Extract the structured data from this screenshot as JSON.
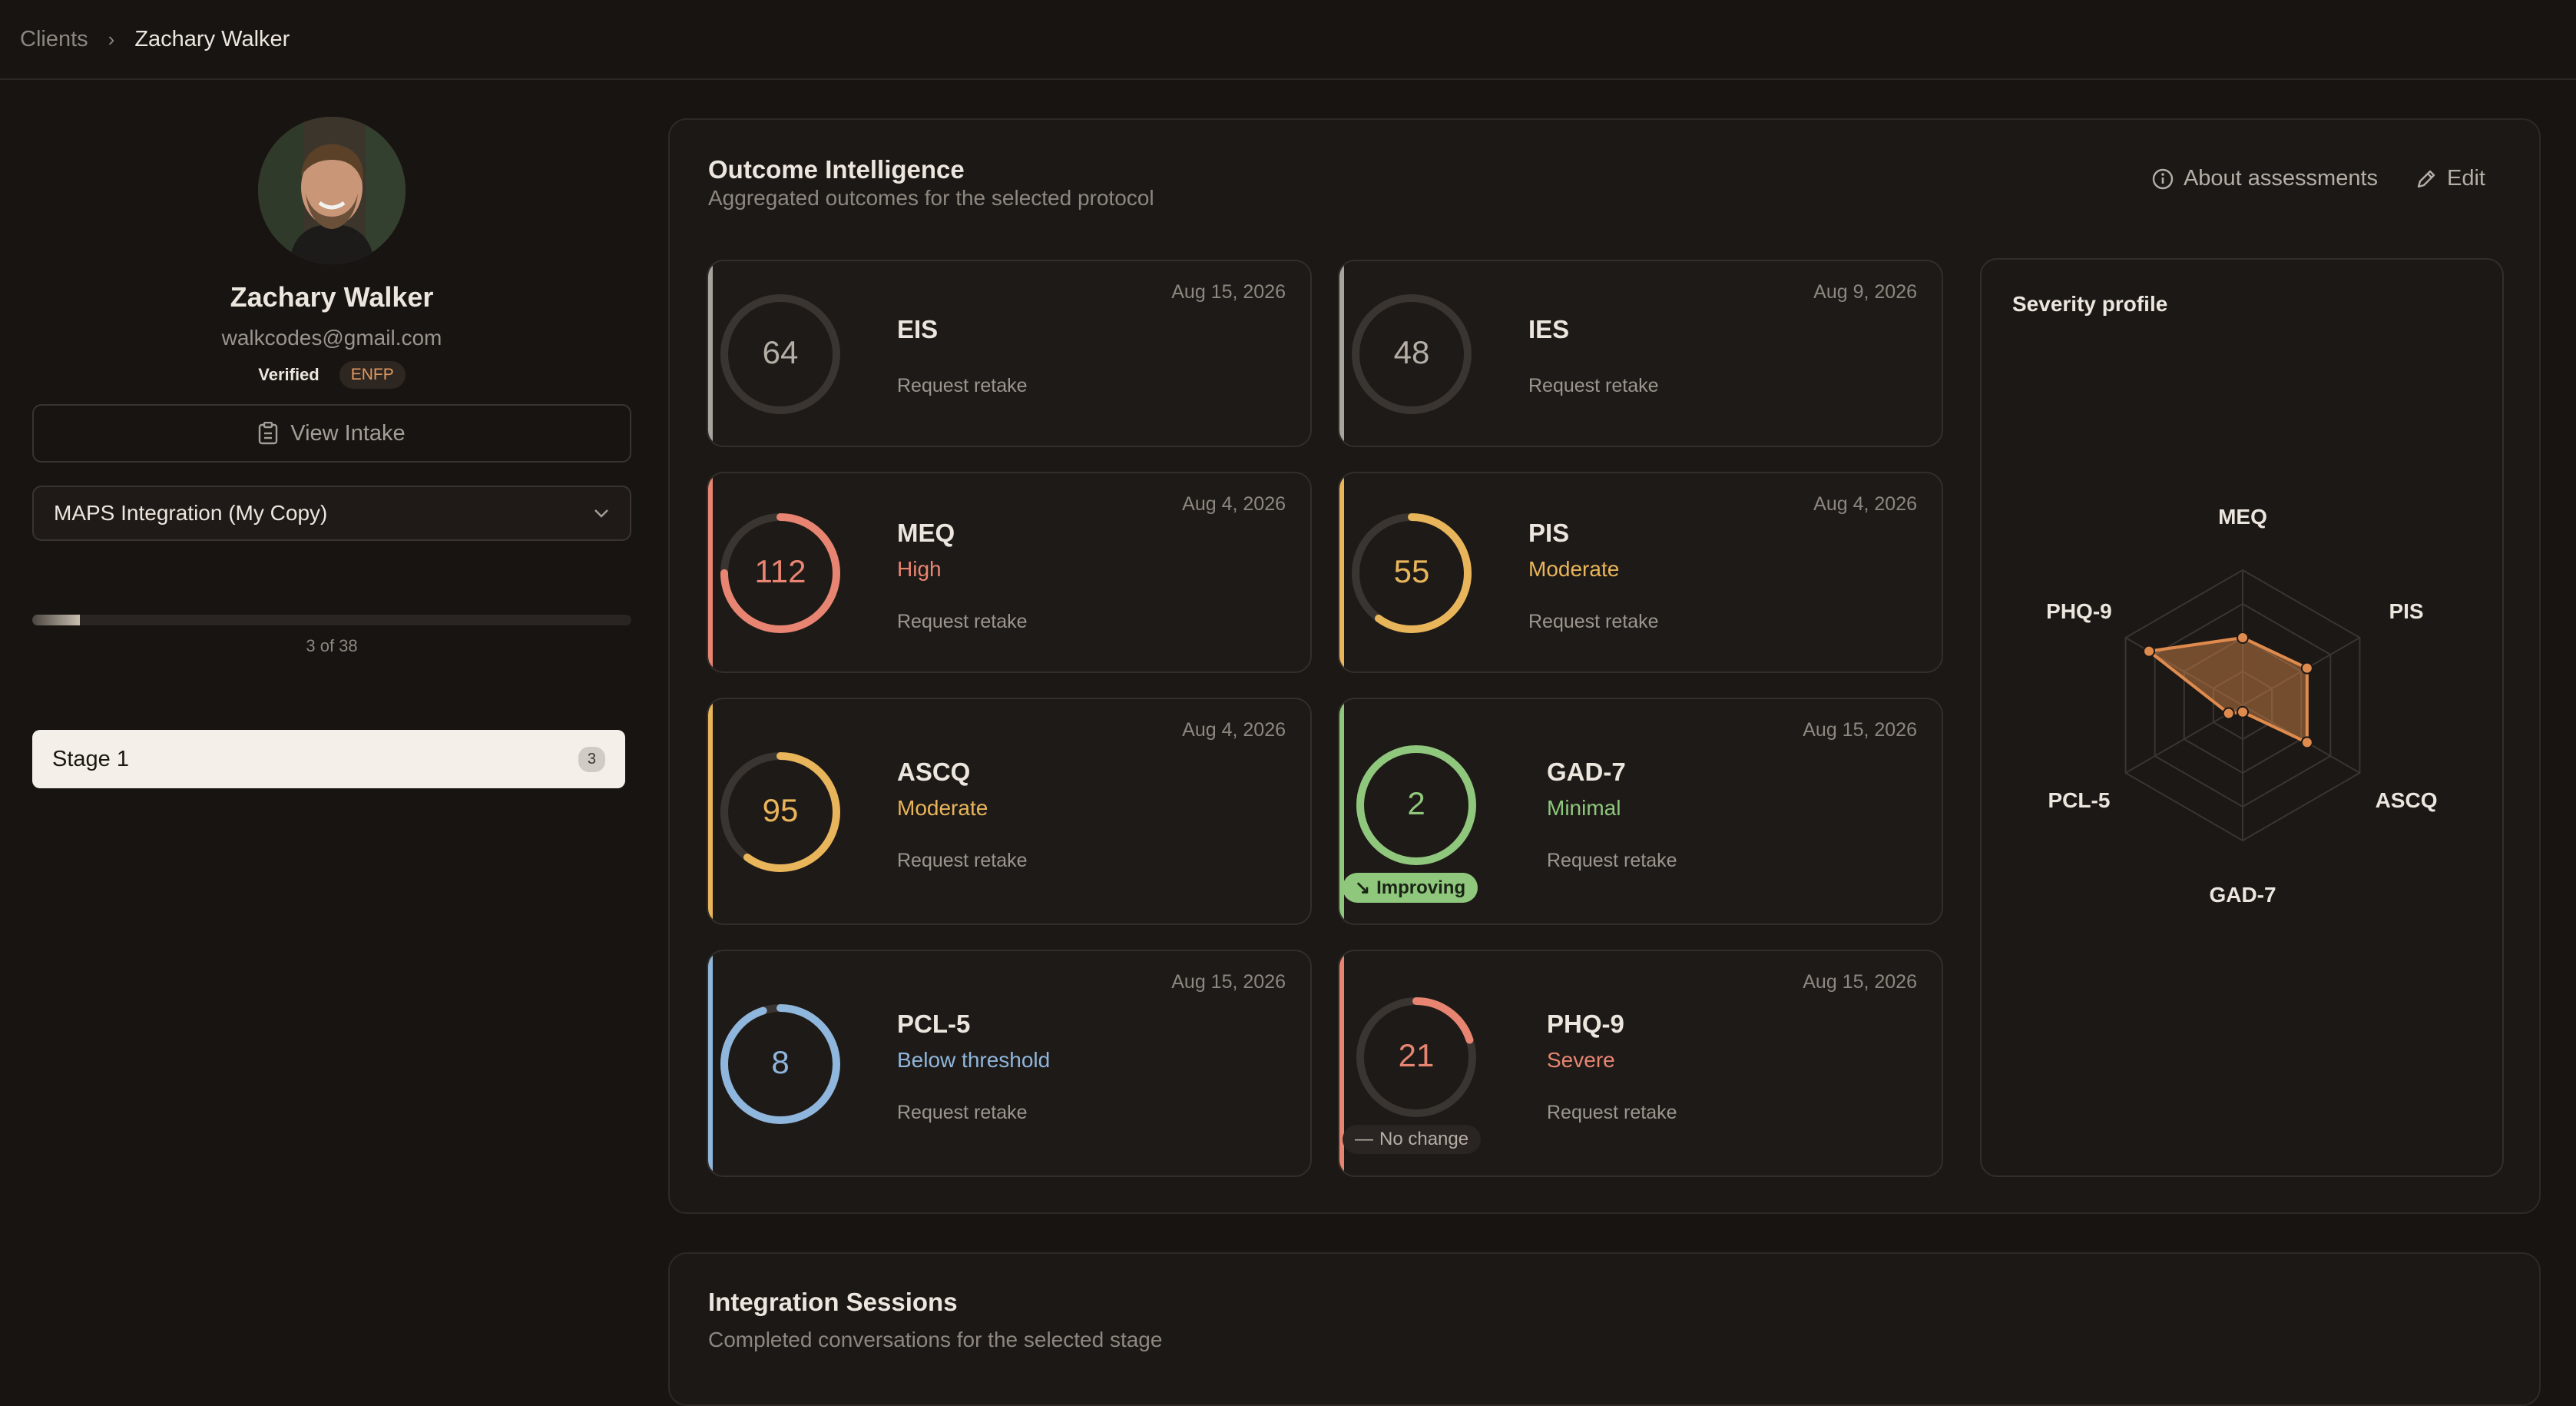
{
  "breadcrumb": {
    "parent": "Clients",
    "current": "Zachary Walker"
  },
  "client": {
    "name": "Zachary Walker",
    "email": "walkcodes@gmail.com",
    "verified": "Verified",
    "mbti": "ENFP"
  },
  "sidebar": {
    "view_intake": "View Intake",
    "protocol_select": "MAPS Integration (My Copy)",
    "progress": {
      "value": 3,
      "total": 38,
      "label": "3 of 38"
    },
    "stage": {
      "label": "Stage 1",
      "count": "3"
    }
  },
  "outcome": {
    "title": "Outcome Intelligence",
    "subtitle": "Aggregated outcomes for the selected protocol",
    "about_label": "About assessments",
    "edit_label": "Edit",
    "retake_label": "Request retake",
    "cards": [
      {
        "name": "EIS",
        "score": "64",
        "date": "Aug 15, 2026",
        "severity": "",
        "color": "#a8a39d",
        "ring_fraction": 0
      },
      {
        "name": "IES",
        "score": "48",
        "date": "Aug 9, 2026",
        "severity": "",
        "color": "#a8a39d",
        "ring_fraction": 0
      },
      {
        "name": "MEQ",
        "score": "112",
        "date": "Aug 4, 2026",
        "severity": "High",
        "color": "#e88572",
        "ring_fraction": 0.75
      },
      {
        "name": "PIS",
        "score": "55",
        "date": "Aug 4, 2026",
        "severity": "Moderate",
        "color": "#e9b55a",
        "ring_fraction": 0.6
      },
      {
        "name": "ASCQ",
        "score": "95",
        "date": "Aug 4, 2026",
        "severity": "Moderate",
        "color": "#e9b55a",
        "ring_fraction": 0.6
      },
      {
        "name": "GAD-7",
        "score": "2",
        "date": "Aug 15, 2026",
        "severity": "Minimal",
        "color": "#8fc77d",
        "ring_fraction": 1,
        "trend": "Improving"
      },
      {
        "name": "PCL-5",
        "score": "8",
        "date": "Aug 15, 2026",
        "severity": "Below threshold",
        "color": "#8fb6dd",
        "ring_fraction": 0.95
      },
      {
        "name": "PHQ-9",
        "score": "21",
        "date": "Aug 15, 2026",
        "severity": "Severe",
        "color": "#e88572",
        "ring_fraction": 0.2,
        "trend": "No change"
      }
    ]
  },
  "severity_profile": {
    "title": "Severity profile",
    "chart_data": {
      "type": "radar",
      "axes": [
        "MEQ",
        "PIS",
        "ASCQ",
        "GAD-7",
        "PCL-5",
        "PHQ-9"
      ],
      "values": [
        0.5,
        0.55,
        0.55,
        0.05,
        0.12,
        0.8
      ],
      "max": 1,
      "color": "#e08b4e"
    }
  },
  "sessions": {
    "title": "Integration Sessions",
    "subtitle": "Completed conversations for the selected stage"
  }
}
